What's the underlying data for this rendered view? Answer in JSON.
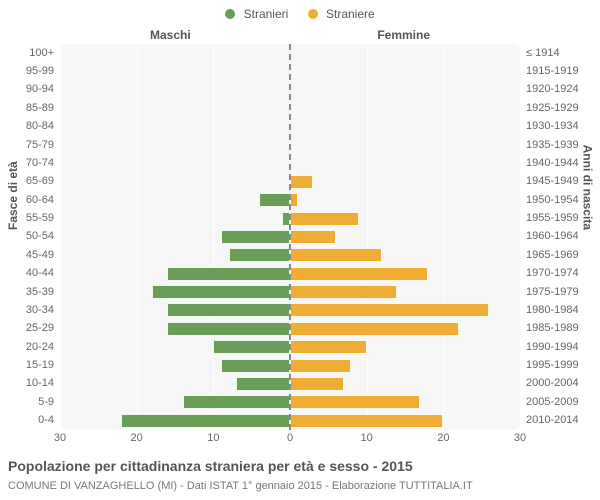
{
  "legend": {
    "items": [
      {
        "label": "Stranieri",
        "color": "#6a9e58"
      },
      {
        "label": "Straniere",
        "color": "#f0ad33"
      }
    ]
  },
  "columns": {
    "left": "Maschi",
    "right": "Femmine"
  },
  "axis_titles": {
    "left": "Fasce di età",
    "right": "Anni di nascita"
  },
  "chart": {
    "type": "population-pyramid",
    "background_color": "#f7f7f7",
    "grid_color": "#ffffff",
    "centerline_color": "#888888",
    "bar_colors": {
      "male": "#6a9e58",
      "female": "#f0ad33"
    },
    "xmax": 30,
    "xticks": [
      30,
      20,
      10,
      0,
      10,
      20,
      30
    ],
    "age_labels": [
      "100+",
      "95-99",
      "90-94",
      "85-89",
      "80-84",
      "75-79",
      "70-74",
      "65-69",
      "60-64",
      "55-59",
      "50-54",
      "45-49",
      "40-44",
      "35-39",
      "30-34",
      "25-29",
      "20-24",
      "15-19",
      "10-14",
      "5-9",
      "0-4"
    ],
    "year_labels": [
      "≤ 1914",
      "1915-1919",
      "1920-1924",
      "1925-1929",
      "1930-1934",
      "1935-1939",
      "1940-1944",
      "1945-1949",
      "1950-1954",
      "1955-1959",
      "1960-1964",
      "1965-1969",
      "1970-1974",
      "1975-1979",
      "1980-1984",
      "1985-1989",
      "1990-1994",
      "1995-1999",
      "2000-2004",
      "2005-2009",
      "2010-2014"
    ],
    "male": [
      0,
      0,
      0,
      0,
      0,
      0,
      0,
      0,
      4,
      1,
      9,
      8,
      16,
      18,
      16,
      16,
      10,
      9,
      7,
      14,
      22
    ],
    "female": [
      0,
      0,
      0,
      0,
      0,
      0,
      0,
      3,
      1,
      9,
      6,
      12,
      18,
      14,
      26,
      22,
      10,
      8,
      7,
      17,
      20
    ]
  },
  "title": "Popolazione per cittadinanza straniera per età e sesso - 2015",
  "subtitle": "COMUNE DI VANZAGHELLO (MI) - Dati ISTAT 1° gennaio 2015 - Elaborazione TUTTITALIA.IT",
  "typography": {
    "title_fontsize": 14,
    "label_fontsize": 11
  }
}
